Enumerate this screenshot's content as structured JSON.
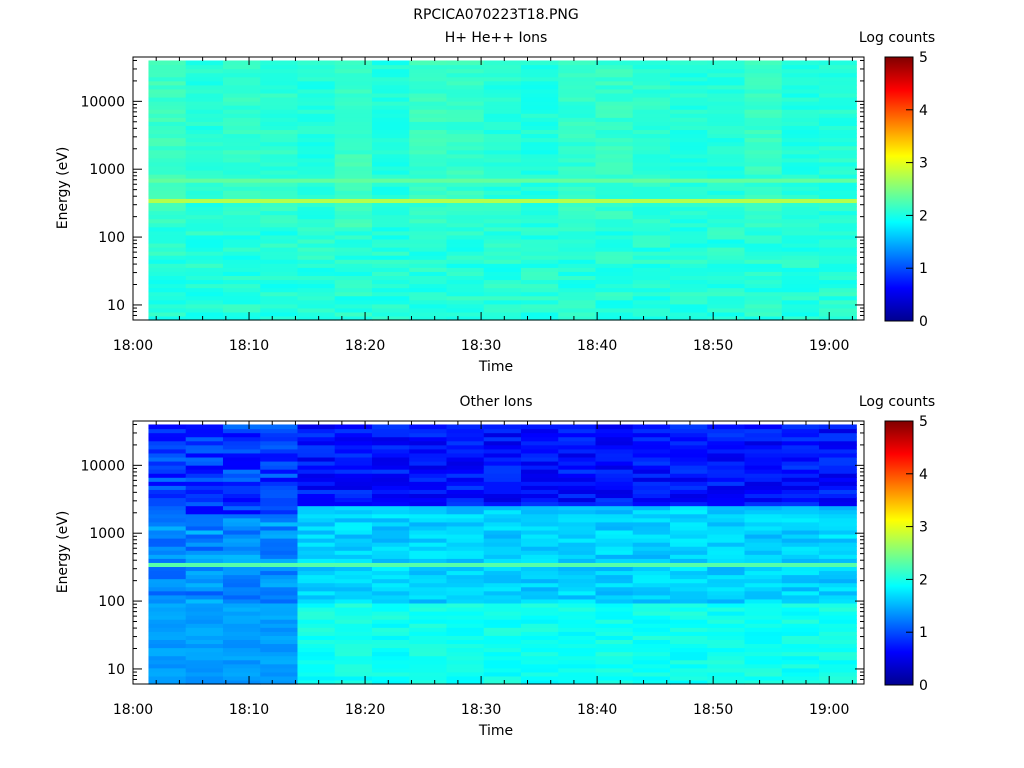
{
  "figure_title": "RPCICA070223T18.PNG",
  "chart_data": [
    {
      "type": "heatmap",
      "title": "H+ He++ Ions",
      "xlabel": "Time",
      "ylabel": "Energy (eV)",
      "x_ticks": [
        "18:00",
        "18:10",
        "18:20",
        "18:30",
        "18:40",
        "18:50",
        "19:00"
      ],
      "x_range": [
        "18:00",
        "19:03"
      ],
      "y_scale": "log",
      "y_ticks": [
        "10",
        "100",
        "1000",
        "10000"
      ],
      "y_range": [
        6,
        45000
      ],
      "data_x_range": [
        "18:01:20",
        "19:02:20"
      ],
      "colorbar": {
        "label": "Log counts",
        "ticks": [
          "0",
          "1",
          "2",
          "3",
          "4",
          "5"
        ],
        "range": [
          0,
          5
        ]
      },
      "time_columns": 19,
      "description_values": {
        "background_log_counts": 2.1,
        "band_energy_eV": 360,
        "band_log_counts": 2.75,
        "secondary_band_energy_eV": 680,
        "low_energy_log_counts": 2.05
      }
    },
    {
      "type": "heatmap",
      "title": "Other Ions",
      "xlabel": "Time",
      "ylabel": "Energy (eV)",
      "x_ticks": [
        "18:00",
        "18:10",
        "18:20",
        "18:30",
        "18:40",
        "18:50",
        "19:00"
      ],
      "x_range": [
        "18:00",
        "19:03"
      ],
      "y_scale": "log",
      "y_ticks": [
        "10",
        "100",
        "1000",
        "10000"
      ],
      "y_range": [
        6,
        45000
      ],
      "data_x_range": [
        "18:01:20",
        "19:02:20"
      ],
      "colorbar": {
        "label": "Log counts",
        "ticks": [
          "0",
          "1",
          "2",
          "3",
          "4",
          "5"
        ],
        "range": [
          0,
          5
        ]
      },
      "time_columns": 19,
      "description_values": {
        "early_columns_log_counts": 1.3,
        "late_low_energy_log_counts": 1.95,
        "late_high_energy_log_counts": 0.7,
        "band_energy_eV": 360,
        "band_log_counts": 2.3,
        "transition_time": "18:14"
      }
    }
  ]
}
